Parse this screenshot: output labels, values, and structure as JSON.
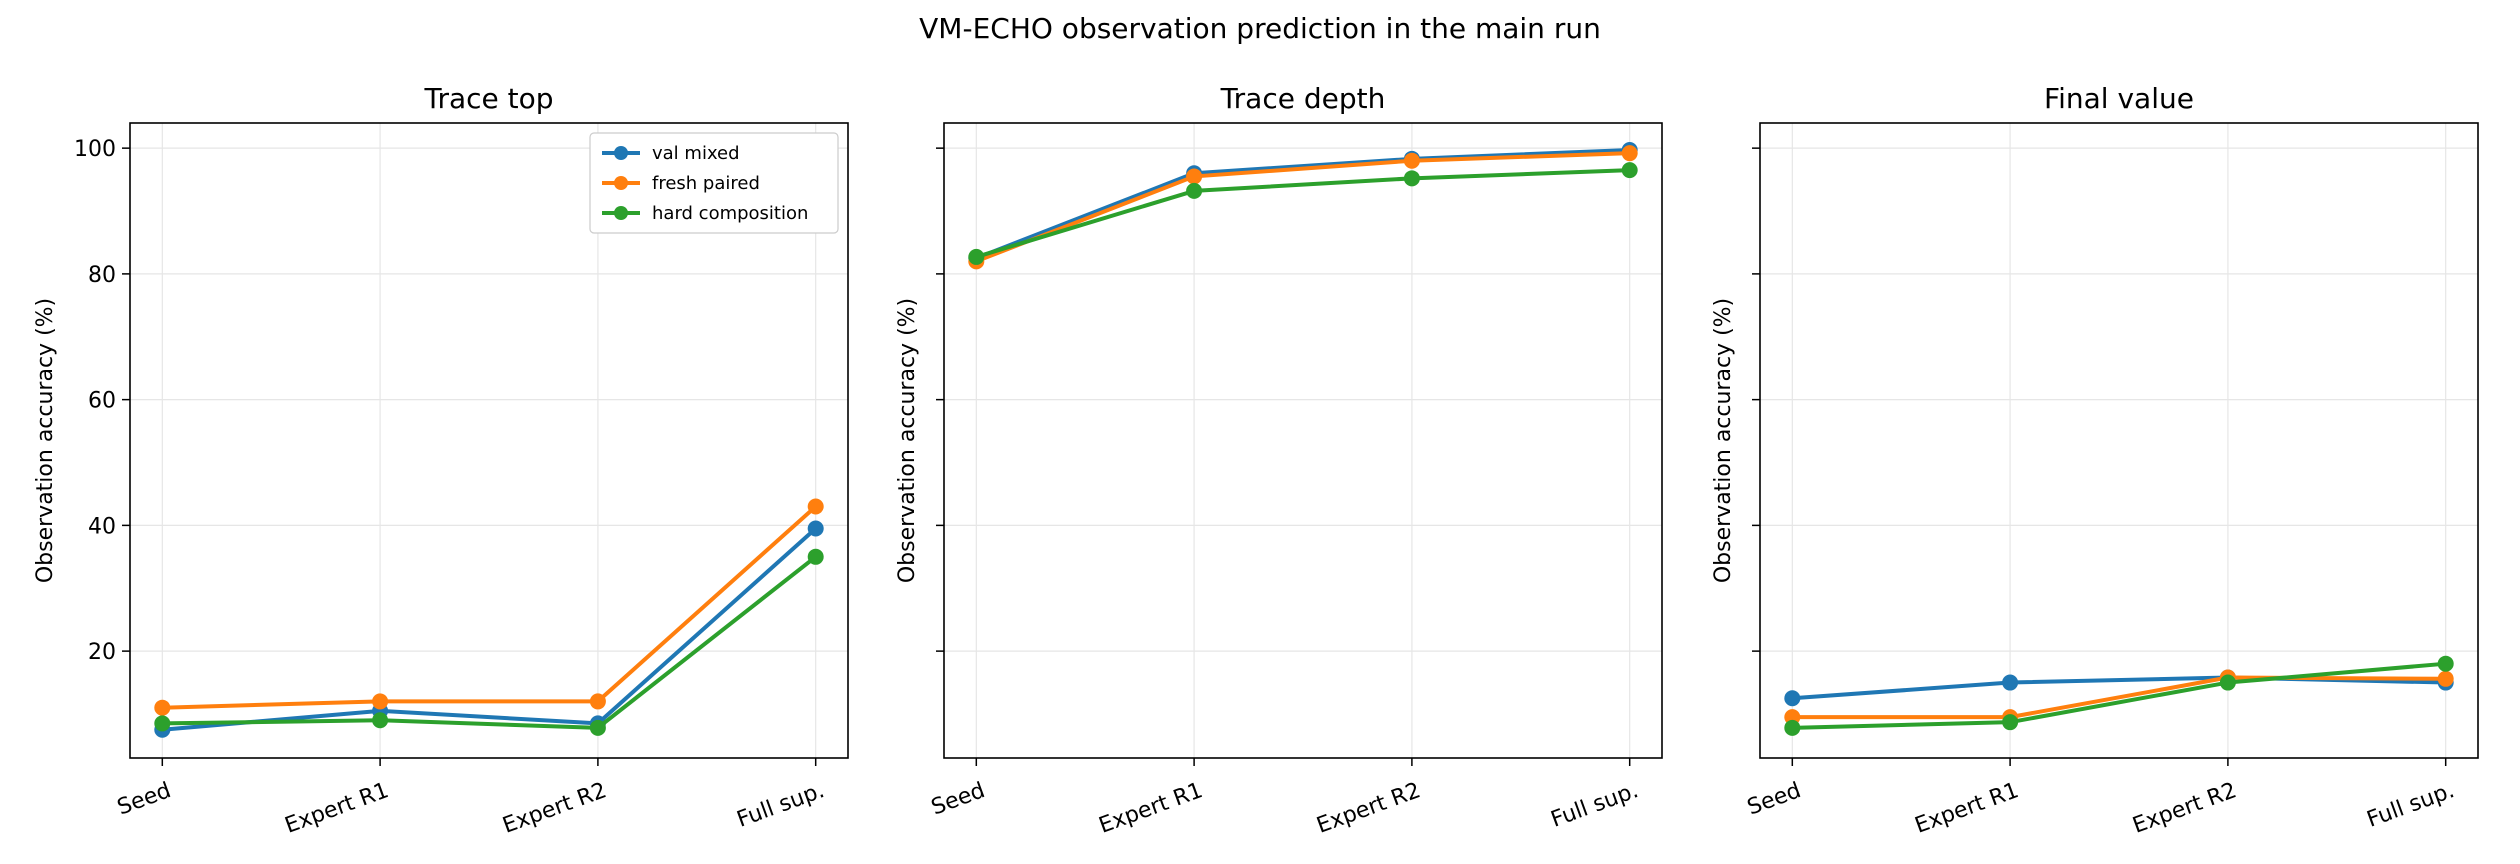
{
  "figure": {
    "suptitle": "VM-ECHO observation prediction in the main run"
  },
  "chart_data": [
    {
      "type": "line",
      "title": "Trace top",
      "ylabel": "Observation accuracy (%)",
      "xlabel": "",
      "categories": [
        "Seed",
        "Expert R1",
        "Expert R2",
        "Full sup."
      ],
      "ylim": [
        3,
        104
      ],
      "yticks": [
        20,
        40,
        60,
        80,
        100
      ],
      "show_ytick_labels": true,
      "grid": true,
      "legend": "top-right",
      "series": [
        {
          "name": "val mixed",
          "color": "#1f77b4",
          "values": [
            7.5,
            10.5,
            8.5,
            39.5
          ]
        },
        {
          "name": "fresh paired",
          "color": "#ff7f0e",
          "values": [
            11,
            12,
            12,
            43
          ]
        },
        {
          "name": "hard composition",
          "color": "#2ca02c",
          "values": [
            8.5,
            9,
            7.8,
            35
          ]
        }
      ]
    },
    {
      "type": "line",
      "title": "Trace depth",
      "ylabel": "Observation accuracy (%)",
      "xlabel": "",
      "categories": [
        "Seed",
        "Expert R1",
        "Expert R2",
        "Full sup."
      ],
      "ylim": [
        3,
        104
      ],
      "yticks": [
        20,
        40,
        60,
        80,
        100
      ],
      "show_ytick_labels": false,
      "grid": true,
      "legend": "none",
      "series": [
        {
          "name": "val mixed",
          "color": "#1f77b4",
          "values": [
            82.5,
            96,
            98.3,
            99.7
          ]
        },
        {
          "name": "fresh paired",
          "color": "#ff7f0e",
          "values": [
            82,
            95.5,
            98,
            99.2
          ]
        },
        {
          "name": "hard composition",
          "color": "#2ca02c",
          "values": [
            82.7,
            93.2,
            95.2,
            96.5
          ]
        }
      ]
    },
    {
      "type": "line",
      "title": "Final value",
      "ylabel": "Observation accuracy (%)",
      "xlabel": "",
      "categories": [
        "Seed",
        "Expert R1",
        "Expert R2",
        "Full sup."
      ],
      "ylim": [
        3,
        104
      ],
      "yticks": [
        20,
        40,
        60,
        80,
        100
      ],
      "show_ytick_labels": false,
      "grid": true,
      "legend": "none",
      "series": [
        {
          "name": "val mixed",
          "color": "#1f77b4",
          "values": [
            12.5,
            15,
            15.8,
            15
          ]
        },
        {
          "name": "fresh paired",
          "color": "#ff7f0e",
          "values": [
            9.5,
            9.5,
            15.8,
            15.6
          ]
        },
        {
          "name": "hard composition",
          "color": "#2ca02c",
          "values": [
            7.8,
            8.7,
            15,
            18
          ]
        }
      ]
    }
  ]
}
